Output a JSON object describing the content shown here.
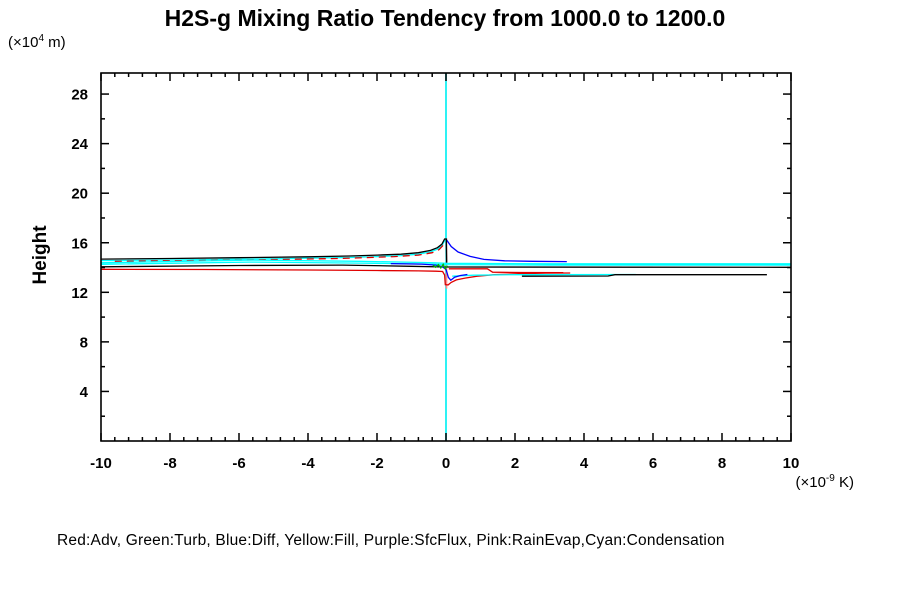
{
  "header": {
    "title": "H2S-g Mixing Ratio Tendency from 1000.0 to 1200.0"
  },
  "axes_text": {
    "y_unit_prefix": "(×10",
    "y_unit_exp": "4",
    "y_unit_suffix": " m)",
    "x_unit_prefix": "(×10",
    "x_unit_exp": "-9",
    "x_unit_suffix": " K)",
    "ylabel": "Height"
  },
  "legend_line": "Red:Adv, Green:Turb, Blue:Diff, Yellow:Fill, Purple:SfcFlux, Pink:RainEvap,Cyan:Condensation",
  "colors": {
    "red": "#e00000",
    "green": "#00b000",
    "blue": "#0000ff",
    "yellow": "#ffff00",
    "purple": "#a020f0",
    "pink": "#ff8888",
    "cyan": "#00ffff",
    "black": "#000000"
  },
  "chart_data": {
    "type": "line",
    "title": "H2S-g Mixing Ratio Tendency from 1000.0 to 1200.0",
    "xlabel_unit": "(x10^-9 K)",
    "ylabel": "Height",
    "ylabel_unit": "(x10^4 m)",
    "xlim": [
      -10,
      10
    ],
    "ylim": [
      0,
      29.7
    ],
    "x_major_ticks": [
      -10,
      -8,
      -6,
      -4,
      -2,
      0,
      2,
      4,
      6,
      8,
      10
    ],
    "x_tick_labels": [
      "-10",
      "-8",
      "-6",
      "-4",
      "-2",
      "0",
      "2",
      "4",
      "6",
      "8",
      "10"
    ],
    "x_minor_step": 0.4,
    "y_major_ticks": [
      4,
      8,
      12,
      16,
      20,
      24,
      28
    ],
    "y_tick_labels": [
      "4",
      "8",
      "12",
      "16",
      "20",
      "24",
      "28"
    ],
    "y_minor_step": 2,
    "grid": false,
    "legend_position": "bottom-text-line",
    "legend_entries": [
      {
        "color_name": "Red",
        "label": "Adv"
      },
      {
        "color_name": "Green",
        "label": "Turb"
      },
      {
        "color_name": "Blue",
        "label": "Diff"
      },
      {
        "color_name": "Yellow",
        "label": "Fill"
      },
      {
        "color_name": "Purple",
        "label": "SfcFlux"
      },
      {
        "color_name": "Pink",
        "label": "RainEvap"
      },
      {
        "color_name": "Cyan",
        "label": "Condensation"
      }
    ],
    "series": [
      {
        "name": "fill-zero-line",
        "color": "#ffff00",
        "width": 1.3,
        "points": [
          [
            0,
            0
          ],
          [
            0,
            29.7
          ]
        ]
      },
      {
        "name": "sfcflux-zero-line",
        "color": "#a020f0",
        "width": 1.3,
        "points": [
          [
            0,
            0
          ],
          [
            0,
            29.7
          ]
        ]
      },
      {
        "name": "condensation-zero-line",
        "color": "#00ffff",
        "width": 1.6,
        "points": [
          [
            0,
            0
          ],
          [
            0,
            29.7
          ]
        ]
      },
      {
        "name": "rainevap-center-line",
        "color": "#ff8888",
        "width": 1.6,
        "points": [
          [
            0.015,
            12.3
          ],
          [
            0.015,
            16.35
          ]
        ]
      },
      {
        "name": "condensation-rise",
        "color": "#00ffff",
        "width": 1.3,
        "points": [
          [
            -10,
            14.56
          ],
          [
            -8,
            14.61
          ],
          [
            -6,
            14.67
          ],
          [
            -4,
            14.75
          ],
          [
            -2.8,
            14.81
          ],
          [
            -2,
            14.88
          ],
          [
            -1.3,
            14.96
          ],
          [
            -0.8,
            15.08
          ],
          [
            -0.45,
            15.26
          ],
          [
            -0.25,
            15.48
          ],
          [
            -0.12,
            15.76
          ],
          [
            -0.04,
            16.16
          ],
          [
            0,
            16.2
          ]
        ]
      },
      {
        "name": "adv-rise",
        "color": "#e00000",
        "width": 1.3,
        "dash": "7 5",
        "points": [
          [
            -9.6,
            14.5
          ],
          [
            -6,
            14.6
          ],
          [
            -3,
            14.74
          ],
          [
            -1.5,
            14.88
          ],
          [
            -0.8,
            15.0
          ],
          [
            -0.4,
            15.2
          ],
          [
            -0.2,
            15.45
          ],
          [
            -0.08,
            15.8
          ],
          [
            -0.03,
            16.1
          ]
        ]
      },
      {
        "name": "condensation-band-upper",
        "color": "#00ffff",
        "width": 1.3,
        "points": [
          [
            -10,
            14.38
          ],
          [
            -5.7,
            14.6
          ],
          [
            -2.5,
            14.5
          ],
          [
            -0.5,
            14.4
          ],
          [
            0,
            14.34
          ],
          [
            3,
            14.3
          ],
          [
            10,
            14.3
          ]
        ]
      },
      {
        "name": "condensation-band-lower",
        "color": "#00ffff",
        "width": 1.3,
        "points": [
          [
            -10,
            14.26
          ],
          [
            -5.7,
            14.44
          ],
          [
            -2.5,
            14.36
          ],
          [
            -0.5,
            14.28
          ],
          [
            0,
            14.24
          ],
          [
            3,
            14.2
          ],
          [
            10,
            14.2
          ]
        ]
      },
      {
        "name": "total-flat-line",
        "color": "#000000",
        "width": 1.3,
        "points": [
          [
            -10,
            14.06
          ],
          [
            -6,
            14.16
          ],
          [
            -3,
            14.2
          ],
          [
            -1,
            14.1
          ],
          [
            0,
            14.04
          ],
          [
            10,
            14.02
          ]
        ]
      },
      {
        "name": "adv-main",
        "color": "#e00000",
        "width": 1.3,
        "points": [
          [
            -10,
            13.86
          ],
          [
            -7,
            13.84
          ],
          [
            -4,
            13.8
          ],
          [
            -2,
            13.76
          ],
          [
            -0.8,
            13.73
          ],
          [
            -0.3,
            13.7
          ],
          [
            -0.1,
            13.68
          ],
          [
            -0.04,
            13.4
          ],
          [
            -0.02,
            12.62
          ],
          [
            0.06,
            12.6
          ],
          [
            0.15,
            12.8
          ],
          [
            0.3,
            13.0
          ],
          [
            0.55,
            13.15
          ],
          [
            0.9,
            13.3
          ],
          [
            1.4,
            13.42
          ],
          [
            2.1,
            13.5
          ],
          [
            2.9,
            13.55
          ],
          [
            3.6,
            13.56
          ]
        ]
      },
      {
        "name": "adv-right-upper",
        "color": "#e00000",
        "width": 1.3,
        "points": [
          [
            0.08,
            13.9
          ],
          [
            1.2,
            13.9
          ],
          [
            1.35,
            13.62
          ],
          [
            2.2,
            13.6
          ],
          [
            3.4,
            13.58
          ]
        ]
      },
      {
        "name": "condensation-low-right",
        "color": "#00ffff",
        "width": 1.3,
        "points": [
          [
            0.18,
            13.3
          ],
          [
            0.8,
            13.38
          ],
          [
            2,
            13.42
          ],
          [
            5.5,
            13.44
          ]
        ]
      },
      {
        "name": "total-low-right",
        "color": "#000000",
        "width": 1.3,
        "points": [
          [
            2.2,
            13.3
          ],
          [
            4.7,
            13.32
          ],
          [
            4.9,
            13.42
          ],
          [
            9.3,
            13.42
          ]
        ]
      },
      {
        "name": "diff-dip",
        "color": "#0000ff",
        "width": 1.3,
        "points": [
          [
            -1.6,
            14.32
          ],
          [
            -0.7,
            14.28
          ],
          [
            -0.3,
            14.2
          ],
          [
            -0.12,
            14.08
          ],
          [
            0,
            13.85
          ],
          [
            0.07,
            13.2
          ],
          [
            0.14,
            12.98
          ],
          [
            0.25,
            13.22
          ],
          [
            0.42,
            13.36
          ],
          [
            0.62,
            13.44
          ]
        ]
      },
      {
        "name": "diff-decay",
        "color": "#0000ff",
        "width": 1.3,
        "points": [
          [
            0.01,
            16.26
          ],
          [
            0.15,
            15.7
          ],
          [
            0.35,
            15.25
          ],
          [
            0.7,
            14.9
          ],
          [
            1.1,
            14.66
          ],
          [
            1.7,
            14.54
          ],
          [
            2.5,
            14.5
          ],
          [
            3.5,
            14.48
          ]
        ]
      },
      {
        "name": "turb-spikes",
        "color": "#00b000",
        "width": 1.3,
        "points": [
          [
            -0.38,
            14.2
          ],
          [
            -0.3,
            14.02
          ],
          [
            -0.22,
            14.24
          ],
          [
            -0.15,
            13.96
          ],
          [
            -0.08,
            14.26
          ],
          [
            -0.02,
            13.9
          ],
          [
            0.04,
            14.14
          ]
        ]
      },
      {
        "name": "total-rise-peak",
        "color": "#000000",
        "width": 1.3,
        "points": [
          [
            -10,
            14.68
          ],
          [
            -8,
            14.73
          ],
          [
            -6,
            14.79
          ],
          [
            -4,
            14.87
          ],
          [
            -2.8,
            14.93
          ],
          [
            -2,
            15.0
          ],
          [
            -1.3,
            15.08
          ],
          [
            -0.8,
            15.2
          ],
          [
            -0.45,
            15.38
          ],
          [
            -0.25,
            15.6
          ],
          [
            -0.12,
            15.88
          ],
          [
            -0.04,
            16.3
          ],
          [
            0.01,
            16.3
          ],
          [
            0.02,
            14.4
          ]
        ]
      }
    ]
  }
}
